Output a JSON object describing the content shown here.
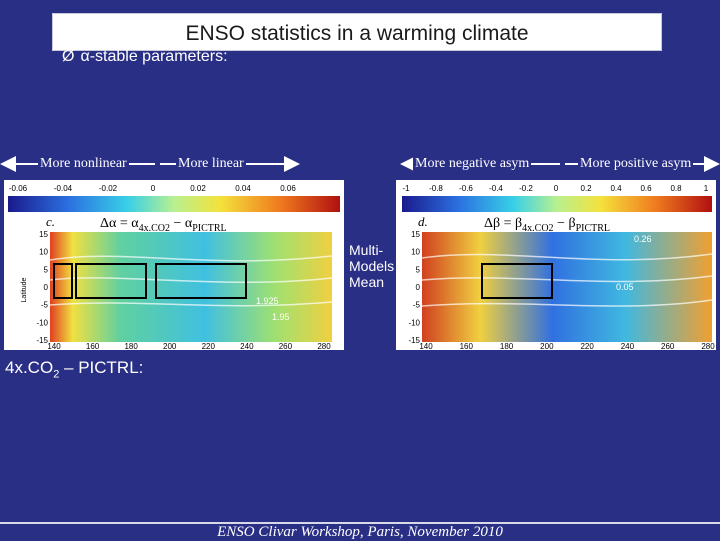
{
  "title": "ENSO statistics in a warming climate",
  "bullet": {
    "arrow": "Ø",
    "symbol": "α",
    "text": "-stable parameters:"
  },
  "left_arrow": {
    "left": "More nonlinear",
    "right": "More linear"
  },
  "right_arrow": {
    "left": "More negative asym",
    "right": "More positive asym"
  },
  "left_colorbar": {
    "ticks": [
      "-0.06",
      "-0.04",
      "-0.02",
      "0",
      "0.02",
      "0.04",
      "0.06"
    ]
  },
  "right_colorbar": {
    "ticks": [
      "-1",
      "-0.8",
      "-0.6",
      "-0.4",
      "-0.2",
      "0",
      "0.2",
      "0.4",
      "0.6",
      "0.8",
      "1"
    ]
  },
  "left_panel": {
    "letter": "c.",
    "formula": {
      "delta": "Δα = α",
      "sub1": "4x.CO2",
      "minus": " − α",
      "sub2": "PICTRL"
    },
    "y_ticks": [
      "15",
      "10",
      "5",
      "0",
      "-5",
      "-10",
      "-15"
    ],
    "x_ticks": [
      "140",
      "160",
      "180",
      "200",
      "220",
      "240",
      "260",
      "280"
    ],
    "ylabel": "Latitude",
    "contour_labels": [
      "1.925",
      "1.95"
    ]
  },
  "right_panel": {
    "letter": "d.",
    "formula": {
      "delta": "Δβ = β",
      "sub1": "4x.CO2",
      "minus": " − β",
      "sub2": "PICTRL"
    },
    "y_ticks": [
      "15",
      "10",
      "5",
      "0",
      "-5",
      "-10",
      "-15"
    ],
    "x_ticks": [
      "140",
      "160",
      "180",
      "200",
      "220",
      "240",
      "260",
      "280"
    ],
    "contour_labels": [
      "0.26",
      "0.05"
    ]
  },
  "center_text": [
    "Multi-",
    "Models",
    "Mean"
  ],
  "ctrl_label": {
    "pre": "4x.CO",
    "sub": "2",
    "post": " – PICTRL:"
  },
  "footer": "ENSO Clivar Workshop, Paris, November 2010"
}
